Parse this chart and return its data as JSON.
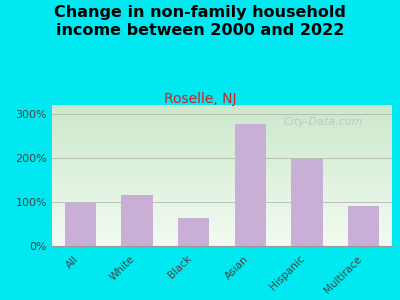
{
  "title": "Change in non-family household\nincome between 2000 and 2022",
  "subtitle": "Roselle, NJ",
  "categories": [
    "All",
    "White",
    "Black",
    "Asian",
    "Hispanic",
    "Multirace"
  ],
  "values": [
    97,
    115,
    63,
    278,
    198,
    90
  ],
  "bar_color": "#c9aed6",
  "title_fontsize": 11.5,
  "title_fontweight": "bold",
  "subtitle_fontsize": 10,
  "subtitle_color": "#cc2222",
  "background_color": "#00e8f0",
  "plot_bg_light": "#f2fbf2",
  "plot_bg_dark": "#cce8cc",
  "ylim": [
    0,
    320
  ],
  "yticks": [
    0,
    100,
    200,
    300
  ],
  "ytick_labels": [
    "0%",
    "100%",
    "200%",
    "300%"
  ],
  "watermark": "City-Data.com",
  "watermark_color": "#c0c0c0",
  "watermark_fontsize": 8
}
